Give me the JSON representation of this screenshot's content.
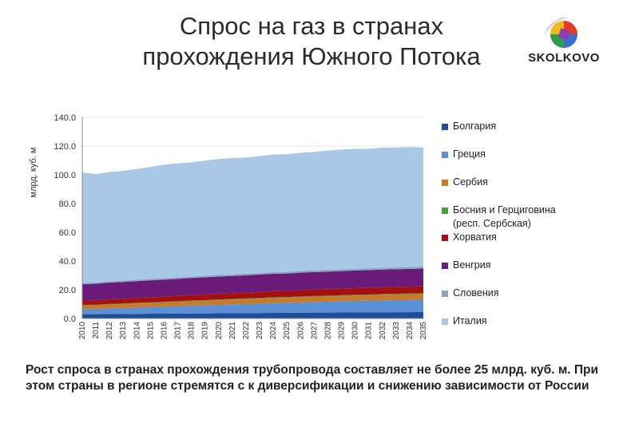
{
  "header": {
    "title_line1": "Спрос на газ в странах",
    "title_line2": "прохождения Южного Потока"
  },
  "logo": {
    "icon": "colorful-sphere-logo-icon",
    "text": "SKOLKOVO"
  },
  "footer": {
    "text": "Рост спроса в странах прохождения трубопровода составляет не более 25 млрд. куб. м. При этом страны в регионе стремятся с к диверсификации и снижению зависимости от России"
  },
  "chart_data": {
    "type": "area",
    "stacked": true,
    "ylabel": "млрд. куб. м",
    "xlabel": "",
    "ylim": [
      0,
      140
    ],
    "yticks": [
      "0.0",
      "20.0",
      "40.0",
      "60.0",
      "80.0",
      "100.0",
      "120.0",
      "140.0"
    ],
    "x": [
      "2010",
      "2011",
      "2012",
      "2013",
      "2014",
      "2015",
      "2016",
      "2017",
      "2018",
      "2019",
      "2020",
      "2021",
      "2022",
      "2023",
      "2024",
      "2025",
      "2026",
      "2027",
      "2028",
      "2029",
      "2030",
      "2031",
      "2032",
      "2033",
      "2034",
      "2035"
    ],
    "legend_position": "right",
    "series": [
      {
        "name": "Болгария",
        "color": "#1f4e99",
        "values": [
          3.0,
          3.0,
          3.1,
          3.1,
          3.2,
          3.3,
          3.3,
          3.4,
          3.5,
          3.5,
          3.6,
          3.7,
          3.7,
          3.8,
          3.9,
          3.9,
          4.0,
          4.1,
          4.1,
          4.2,
          4.2,
          4.3,
          4.3,
          4.4,
          4.4,
          4.5
        ]
      },
      {
        "name": "Греция",
        "color": "#5b8fd6",
        "values": [
          3.5,
          3.6,
          3.9,
          4.1,
          4.4,
          4.6,
          4.9,
          5.1,
          5.4,
          5.6,
          5.8,
          6.1,
          6.3,
          6.6,
          6.8,
          7.0,
          7.2,
          7.4,
          7.6,
          7.8,
          8.0,
          8.1,
          8.3,
          8.4,
          8.5,
          8.6
        ]
      },
      {
        "name": "Сербия",
        "color": "#c87a2c",
        "values": [
          2.5,
          2.6,
          2.7,
          2.8,
          2.9,
          2.9,
          3.0,
          3.1,
          3.1,
          3.2,
          3.3,
          3.3,
          3.4,
          3.4,
          3.5,
          3.5,
          3.6,
          3.6,
          3.7,
          3.7,
          3.8,
          3.8,
          3.9,
          3.9,
          4.0,
          4.0
        ]
      },
      {
        "name": "Босния и Герциговина (респ. Сербская)",
        "color": "#4c9a3c",
        "values": [
          0.4,
          0.4,
          0.4,
          0.4,
          0.4,
          0.4,
          0.4,
          0.4,
          0.5,
          0.5,
          0.5,
          0.5,
          0.5,
          0.5,
          0.5,
          0.5,
          0.5,
          0.5,
          0.5,
          0.5,
          0.5,
          0.5,
          0.5,
          0.5,
          0.5,
          0.5
        ]
      },
      {
        "name": "Хорватия",
        "color": "#a50f0f",
        "values": [
          3.0,
          3.1,
          3.2,
          3.3,
          3.4,
          3.5,
          3.6,
          3.7,
          3.8,
          3.9,
          4.0,
          4.0,
          4.1,
          4.2,
          4.3,
          4.3,
          4.4,
          4.5,
          4.5,
          4.6,
          4.6,
          4.7,
          4.7,
          4.8,
          4.8,
          4.9
        ]
      },
      {
        "name": "Венгрия",
        "color": "#6a1b7a",
        "values": [
          11.5,
          11.5,
          11.6,
          11.7,
          11.7,
          11.8,
          11.8,
          11.9,
          11.9,
          12.0,
          12.0,
          12.0,
          12.1,
          12.1,
          12.1,
          12.1,
          12.2,
          12.2,
          12.2,
          12.2,
          12.3,
          12.3,
          12.3,
          12.3,
          12.3,
          12.3
        ]
      },
      {
        "name": "Словения",
        "color": "#8ea3c2",
        "values": [
          0.9,
          0.9,
          0.9,
          0.9,
          1.0,
          1.0,
          1.0,
          1.0,
          1.0,
          1.0,
          1.1,
          1.1,
          1.1,
          1.1,
          1.1,
          1.1,
          1.2,
          1.2,
          1.2,
          1.2,
          1.2,
          1.2,
          1.3,
          1.3,
          1.3,
          1.3
        ]
      },
      {
        "name": "Италия",
        "color": "#a9c7e6",
        "values": [
          76.7,
          75.4,
          76.2,
          76.4,
          77.0,
          78.0,
          79.0,
          79.4,
          79.4,
          80.2,
          80.7,
          81.0,
          80.8,
          81.3,
          81.8,
          81.9,
          82.2,
          82.5,
          83.0,
          83.4,
          83.4,
          83.3,
          83.5,
          83.4,
          83.5,
          82.9
        ]
      }
    ]
  }
}
